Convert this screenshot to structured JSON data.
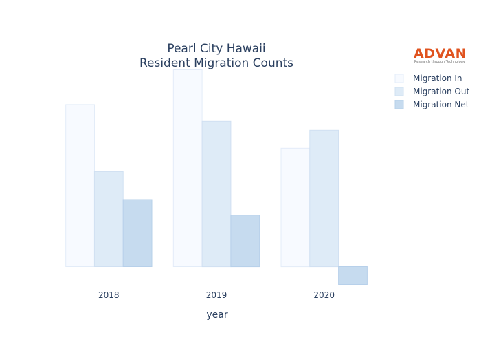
{
  "chart_data": {
    "type": "bar",
    "title": [
      "Pearl City Hawaii",
      "Resident Migration Counts"
    ],
    "xlabel": "year",
    "ylabel": "",
    "categories": [
      "2018",
      "2019",
      "2020"
    ],
    "series": [
      {
        "name": "Migration In",
        "values": [
          1450,
          1760,
          1060
        ],
        "color": "#f7faff",
        "stroke": "#e3ecf8"
      },
      {
        "name": "Migration Out",
        "values": [
          850,
          1300,
          1220
        ],
        "color": "#deebf7",
        "stroke": "#d0e0f2"
      },
      {
        "name": "Migration Net",
        "values": [
          600,
          460,
          -160
        ],
        "color": "#c6dbef",
        "stroke": "#b7d0ea"
      }
    ],
    "ylim": [
      -200,
      1800
    ],
    "grid": false,
    "legend_position": "top-right"
  },
  "logo": {
    "word": "ADVAN",
    "tagline": "Research through Technology"
  }
}
